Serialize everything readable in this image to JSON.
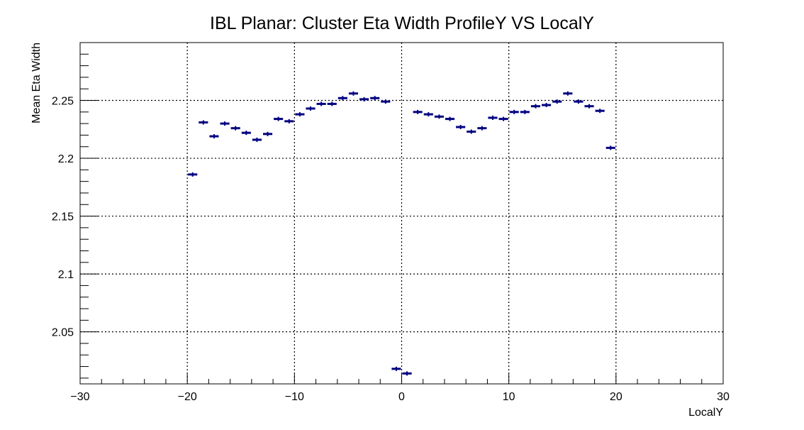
{
  "chart_data": {
    "type": "scatter",
    "title": "IBL Planar: Cluster Eta Width ProfileY VS LocalY",
    "xlabel": "LocalY",
    "ylabel": "Mean Eta Width",
    "xlim": [
      -30,
      30
    ],
    "ylim": [
      2.005,
      2.3
    ],
    "xticks": [
      -30,
      -20,
      -10,
      0,
      10,
      20,
      30
    ],
    "xtick_labels": [
      "−30",
      "−20",
      "−10",
      "0",
      "10",
      "20",
      "30"
    ],
    "yticks": [
      2.05,
      2.1,
      2.15,
      2.2,
      2.25
    ],
    "ytick_labels": [
      "2.05",
      "2.1",
      "2.15",
      "2.2",
      "2.25"
    ],
    "grid": true,
    "marker_color": "#000080",
    "bin_width": 1,
    "series": [
      {
        "x": [
          -19.5,
          -18.5,
          -17.5,
          -16.5,
          -15.5,
          -14.5,
          -13.5,
          -12.5,
          -11.5,
          -10.5,
          -9.5,
          -8.5,
          -7.5,
          -6.5,
          -5.5,
          -4.5,
          -3.5,
          -2.5,
          -1.5,
          -0.5,
          0.5,
          1.5,
          2.5,
          3.5,
          4.5,
          5.5,
          6.5,
          7.5,
          8.5,
          9.5,
          10.5,
          11.5,
          12.5,
          13.5,
          14.5,
          15.5,
          16.5,
          17.5,
          18.5,
          19.5
        ],
        "y": [
          2.186,
          2.231,
          2.219,
          2.23,
          2.226,
          2.222,
          2.216,
          2.221,
          2.234,
          2.232,
          2.238,
          2.243,
          2.247,
          2.247,
          2.252,
          2.256,
          2.251,
          2.252,
          2.249,
          2.018,
          2.014,
          2.24,
          2.238,
          2.236,
          2.234,
          2.227,
          2.223,
          2.226,
          2.235,
          2.234,
          2.24,
          2.24,
          2.245,
          2.246,
          2.249,
          2.256,
          2.249,
          2.245,
          2.241,
          2.209
        ]
      }
    ]
  }
}
